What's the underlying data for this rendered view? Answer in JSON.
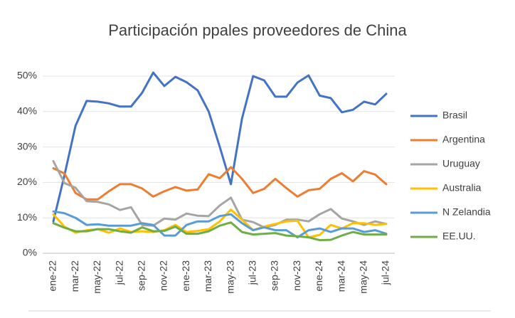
{
  "chart_data": {
    "type": "line",
    "title": "Participación ppales proveedores de China",
    "categories": [
      "ene-22",
      null,
      "mar-22",
      null,
      "may-22",
      null,
      "jul-22",
      null,
      "sep-22",
      null,
      "nov-22",
      null,
      "ene-23",
      null,
      "mar-23",
      null,
      "may-23",
      null,
      "jul-23",
      null,
      "sep-23",
      null,
      "nov-23",
      null,
      "ene-24",
      null,
      "mar-24",
      null,
      "may-24",
      null,
      "jul-24"
    ],
    "ylim": [
      0,
      50
    ],
    "yticks": [
      {
        "value": 0,
        "label": "0%"
      },
      {
        "value": 10,
        "label": "10%"
      },
      {
        "value": 20,
        "label": "20%"
      },
      {
        "value": 30,
        "label": "30%"
      },
      {
        "value": 40,
        "label": "40%"
      },
      {
        "value": 50,
        "label": "50%"
      }
    ],
    "grid": true,
    "legend": "right",
    "series": [
      {
        "name": "Brasil",
        "color": "#4472c4",
        "values": [
          9,
          22,
          36,
          43,
          42.8,
          42.3,
          41.4,
          41.4,
          45.3,
          51,
          47.2,
          49.8,
          48.3,
          46,
          40,
          30,
          19.5,
          38,
          50,
          48.8,
          44.2,
          44.2,
          48.2,
          50.2,
          44.5,
          43.8,
          39.8,
          40.5,
          42.8,
          42,
          45
        ]
      },
      {
        "name": "Argentina",
        "color": "#ed7d31",
        "values": [
          24,
          22.5,
          17,
          15.2,
          15.2,
          17.5,
          19.5,
          19.5,
          18.3,
          16,
          17.5,
          18.7,
          17.7,
          18,
          22.3,
          21.2,
          24.3,
          21,
          17,
          18.2,
          21,
          18.4,
          16,
          17.8,
          18.2,
          21,
          22.6,
          20.3,
          23.2,
          22.2,
          19.5
        ]
      },
      {
        "name": "Uruguay",
        "color": "#a5a5a5",
        "values": [
          26,
          19.8,
          18.5,
          14.7,
          14.5,
          13.8,
          12.2,
          13,
          8,
          7.8,
          9.8,
          9.5,
          11.2,
          10.6,
          10.5,
          13.5,
          15.7,
          9.5,
          8.8,
          7.3,
          8,
          9.5,
          9.5,
          9,
          11,
          12.5,
          9.8,
          9,
          8,
          9,
          8.3
        ]
      },
      {
        "name": "Australia",
        "color": "#ffc000",
        "values": [
          11,
          7.5,
          5.8,
          6.5,
          6.8,
          5.8,
          7,
          6,
          6.2,
          6,
          6.5,
          8,
          6,
          6.3,
          6.8,
          9,
          12.3,
          9.5,
          6.5,
          7.5,
          8.3,
          9,
          9.2,
          4.5,
          5.2,
          8,
          7,
          8.5,
          8.5,
          8,
          8.3
        ]
      },
      {
        "name": "N Zelandia",
        "color": "#5b9bd5",
        "values": [
          11.8,
          11.3,
          10,
          8,
          8.2,
          7.8,
          7.8,
          7.8,
          8.5,
          8,
          5,
          5,
          8,
          9,
          9,
          10.5,
          11,
          8.5,
          6.5,
          7.3,
          6.5,
          6.5,
          4.5,
          6.5,
          7,
          6,
          7,
          7,
          6,
          6.5,
          5.5
        ]
      },
      {
        "name": "EE.UU.",
        "color": "#70ad47",
        "values": [
          8.5,
          7.2,
          6.2,
          6.2,
          6.8,
          6.8,
          6.2,
          5.8,
          7.3,
          6.2,
          6.3,
          7.5,
          5.5,
          5.5,
          6.2,
          7.8,
          8.7,
          6,
          5.3,
          5.5,
          5.7,
          5,
          4.8,
          4.5,
          3.7,
          3.8,
          5,
          6,
          5.3,
          5.3,
          5.3
        ]
      }
    ]
  }
}
